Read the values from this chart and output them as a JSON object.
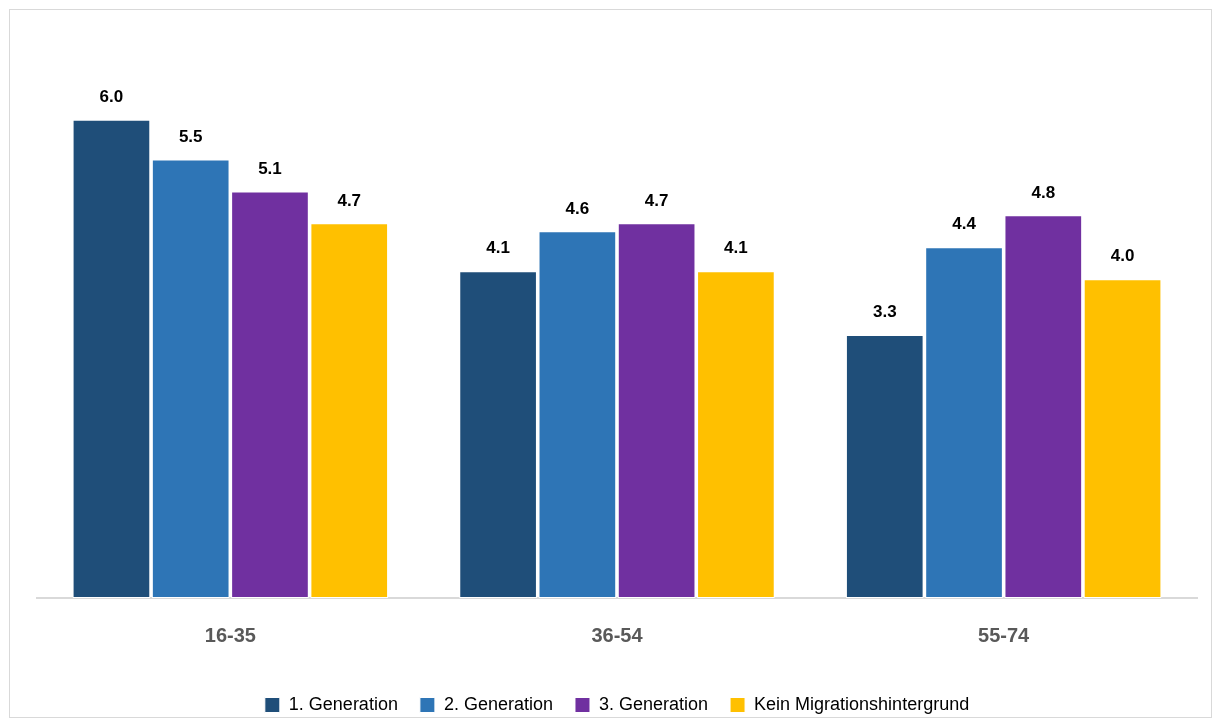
{
  "chart_data": {
    "type": "bar",
    "categories": [
      "16-35",
      "36-54",
      "55-74"
    ],
    "series": [
      {
        "name": "1. Generation",
        "color": "#1f4e79",
        "values": [
          6.0,
          4.1,
          3.3
        ],
        "value_labels": [
          "6.0",
          "4.1",
          "3.3"
        ]
      },
      {
        "name": "2. Generation",
        "color": "#2e75b6",
        "values": [
          5.5,
          4.6,
          4.4
        ],
        "value_labels": [
          "5.5",
          "4.6",
          "4.4"
        ]
      },
      {
        "name": "3. Generation",
        "color": "#7030a0",
        "values": [
          5.1,
          4.7,
          4.8
        ],
        "value_labels": [
          "5.1",
          "4.7",
          "4.8"
        ]
      },
      {
        "name": "Kein Migrationshintergrund",
        "color": "#ffc000",
        "values": [
          4.7,
          4.1,
          4.0
        ],
        "value_labels": [
          "4.7",
          "4.1",
          "4.0"
        ]
      }
    ],
    "tick_labels": "x",
    "grid": false,
    "legend": "bottom"
  }
}
